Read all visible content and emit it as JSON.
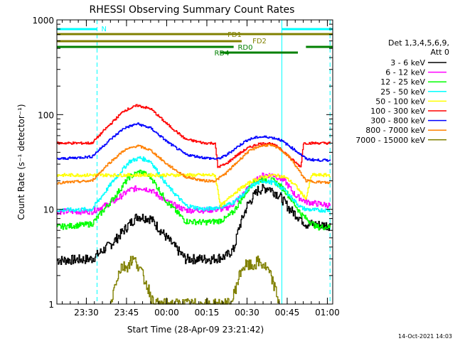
{
  "chart_data": {
    "type": "line",
    "title": "RHESSI Observing Summary Count Rates",
    "xlabel": "Start Time (28-Apr-09 23:21:42)",
    "ylabel": "Count Rate (s⁻¹ detector⁻¹)",
    "yscale": "log",
    "ylim": [
      1,
      1000
    ],
    "xlim_minutes": [
      -3,
      100
    ],
    "x_ticks": [
      {
        "m": 8,
        "label": "23:30"
      },
      {
        "m": 23,
        "label": "23:45"
      },
      {
        "m": 38,
        "label": "00:00"
      },
      {
        "m": 53,
        "label": "00:15"
      },
      {
        "m": 68,
        "label": "00:30"
      },
      {
        "m": 83,
        "label": "00:45"
      },
      {
        "m": 98,
        "label": "01:00"
      }
    ],
    "y_ticks": [
      {
        "v": 1,
        "label": "1"
      },
      {
        "v": 10,
        "label": "10"
      },
      {
        "v": 100,
        "label": "100"
      },
      {
        "v": 1000,
        "label": "1000"
      }
    ],
    "legend_header": [
      "Det 1,3,4,5,6,9,",
      "Att 0"
    ],
    "legend_position": "right",
    "footer_date": "14-Oct-2021 14:03",
    "vlines": [
      {
        "m": -3,
        "style": "solid",
        "color": "#00ffff"
      },
      {
        "m": 12,
        "style": "dashed",
        "color": "#00ffff"
      },
      {
        "m": 81,
        "style": "solid",
        "color": "#00ffff"
      },
      {
        "m": 99,
        "style": "dashed",
        "color": "#00ffff"
      }
    ],
    "flag_bars": [
      {
        "label": "N",
        "color": "#00ffff",
        "segments": [
          [
            -3,
            12
          ],
          [
            81,
            100
          ]
        ],
        "y": 1
      }
    ],
    "mode_bars": [
      {
        "label": "FD1",
        "color": "#808000",
        "segments": [
          [
            -3,
            100
          ]
        ]
      },
      {
        "label": "FD2",
        "color": "#808000",
        "segments": [
          [
            -3,
            66
          ]
        ]
      },
      {
        "label": "RD0",
        "color": "#008000",
        "segments": [
          [
            -3,
            63
          ],
          [
            90,
            100
          ]
        ]
      },
      {
        "label": "RD4",
        "color": "#008000",
        "segments": [
          [
            58,
            87
          ]
        ]
      }
    ],
    "series": [
      {
        "name": "3 - 6 keV",
        "color": "#000000",
        "x": [
          -3,
          10,
          18,
          24,
          27,
          32,
          38,
          45,
          55,
          60,
          63,
          65,
          68,
          72,
          76,
          80,
          84,
          88,
          90,
          92,
          96,
          99
        ],
        "y": [
          2.9,
          3.0,
          4.5,
          7.0,
          8.5,
          8.0,
          5.0,
          3.0,
          3.0,
          3.2,
          3.8,
          6.5,
          11,
          16,
          17,
          14,
          10,
          8.0,
          7.0,
          7.0,
          6.8,
          6.8
        ]
      },
      {
        "name": "6 - 12 keV",
        "color": "#ff00ff",
        "x": [
          -3,
          10,
          18,
          24,
          28,
          32,
          38,
          45,
          52,
          57,
          60,
          63,
          66,
          70,
          74,
          78,
          82,
          86,
          88,
          90,
          94,
          99
        ],
        "y": [
          9.5,
          9.5,
          12,
          16,
          17,
          16,
          12,
          9.8,
          9.8,
          10,
          10.2,
          11.5,
          14,
          19,
          23,
          23,
          20,
          14,
          13,
          12,
          11.5,
          11
        ]
      },
      {
        "name": "12 - 25 keV",
        "color": "#00ff00",
        "x": [
          -3,
          10,
          18,
          24,
          28,
          32,
          38,
          45,
          52,
          57,
          60,
          63,
          66,
          70,
          74,
          78,
          82,
          86,
          88,
          90,
          94,
          99
        ],
        "y": [
          6.5,
          7.0,
          13,
          22,
          25,
          22,
          12,
          7.5,
          7.3,
          7.5,
          8.0,
          9.5,
          13,
          19,
          21,
          20,
          16,
          11,
          9.0,
          8.0,
          6.5,
          6.5
        ]
      },
      {
        "name": "25 - 50 keV",
        "color": "#00ffff",
        "x": [
          -3,
          10,
          18,
          24,
          28,
          32,
          38,
          45,
          52,
          57,
          60,
          63,
          66,
          70,
          74,
          78,
          82,
          86,
          88,
          90,
          94,
          99
        ],
        "y": [
          9.8,
          10,
          20,
          32,
          35,
          32,
          18,
          11,
          10,
          10.5,
          11,
          12,
          14,
          18,
          20,
          19,
          16,
          12,
          10.5,
          10,
          9.8,
          9.8
        ]
      },
      {
        "name": "50 - 100 keV",
        "color": "#ffff00",
        "x": [
          -3,
          10,
          20,
          28,
          36,
          44,
          52,
          56,
          58,
          60,
          62,
          66,
          70,
          74,
          78,
          82,
          86,
          88,
          90,
          92,
          96,
          99
        ],
        "y": [
          23,
          23,
          23,
          23,
          23,
          23,
          23,
          23,
          11,
          12,
          14,
          17,
          20,
          22,
          23,
          22,
          18,
          15,
          13,
          23,
          23,
          23
        ]
      },
      {
        "name": "100 - 300 keV",
        "color": "#ff0000",
        "x": [
          -3,
          10,
          16,
          22,
          27,
          32,
          38,
          45,
          52,
          56,
          57,
          60,
          64,
          68,
          72,
          76,
          80,
          84,
          88,
          89,
          94,
          99
        ],
        "y": [
          50,
          50,
          75,
          110,
          125,
          115,
          80,
          55,
          50,
          50,
          28,
          30,
          37,
          44,
          49,
          50,
          45,
          35,
          28,
          50,
          50,
          50
        ]
      },
      {
        "name": "300 - 800 keV",
        "color": "#0000ff",
        "x": [
          -3,
          10,
          16,
          22,
          27,
          32,
          38,
          45,
          52,
          57,
          60,
          64,
          68,
          72,
          76,
          80,
          84,
          88,
          90,
          94,
          99
        ],
        "y": [
          34,
          36,
          52,
          72,
          80,
          72,
          52,
          38,
          35,
          34,
          37,
          45,
          54,
          58,
          58,
          55,
          46,
          38,
          34,
          33,
          33
        ]
      },
      {
        "name": "800 - 7000 keV",
        "color": "#ff8000",
        "x": [
          -3,
          10,
          16,
          22,
          27,
          32,
          38,
          45,
          52,
          56,
          60,
          64,
          68,
          72,
          76,
          80,
          84,
          88,
          90,
          94,
          99
        ],
        "y": [
          19,
          20,
          30,
          42,
          47,
          42,
          30,
          22,
          20,
          20,
          24,
          31,
          40,
          46,
          48,
          44,
          35,
          24,
          20,
          19.5,
          19
        ]
      },
      {
        "name": "7000 - 15000 keV",
        "color": "#808000",
        "x": [
          17,
          19,
          21,
          23,
          25,
          27,
          29,
          31,
          33,
          62,
          64,
          66,
          68,
          70,
          72,
          74,
          76,
          78,
          80
        ],
        "y": [
          1,
          1.8,
          2.5,
          2.5,
          3.0,
          2.7,
          2.0,
          1.5,
          1,
          1,
          1.6,
          2.4,
          2.6,
          2.5,
          2.8,
          2.6,
          2.2,
          1.6,
          1
        ]
      }
    ]
  }
}
